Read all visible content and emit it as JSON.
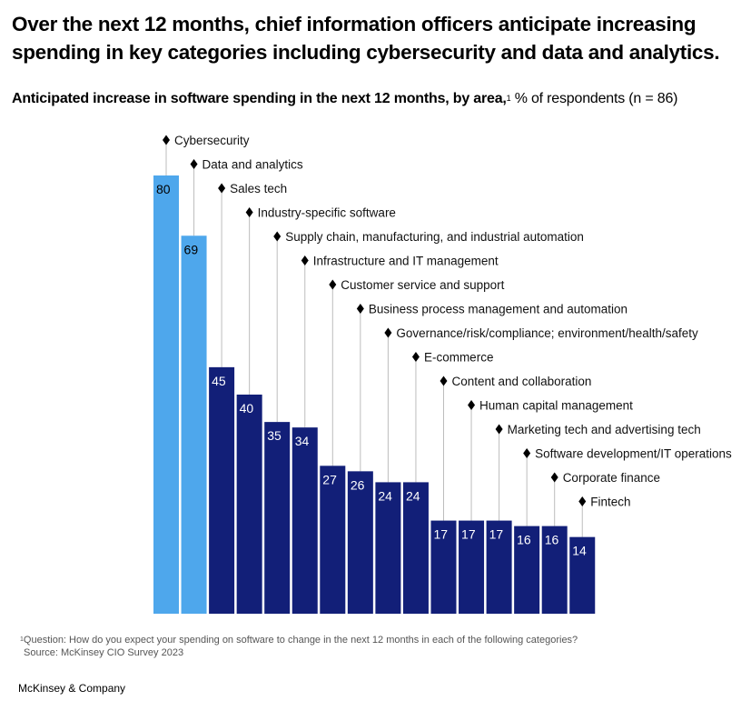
{
  "title": "Over the next 12 months, chief information officers anticipate increasing spending in key categories including cybersecurity and data and analytics.",
  "subtitle": {
    "bold": "Anticipated increase in software spending in the next 12 months, by area,",
    "footnote_marker": "1",
    "regular": " % of respondents (n = 86)"
  },
  "colors": {
    "highlight": "#4ea7ec",
    "primary": "#121f78",
    "connector": "#bdbdbd",
    "label_on_highlight": "#000000",
    "label_on_primary": "#ffffff"
  },
  "chart_data": {
    "type": "bar",
    "title": "Anticipated increase in software spending in the next 12 months, by area",
    "ylabel": "% of respondents (n = 86)",
    "xlabel": "",
    "ylim": [
      0,
      80
    ],
    "grid": false,
    "legend": "none",
    "label_style": "diamond-leader labels above bars",
    "categories": [
      "Cybersecurity",
      "Data and analytics",
      "Sales tech",
      "Industry-specific software",
      "Supply chain, manufacturing, and industrial automation",
      "Infrastructure and IT management",
      "Customer service and support",
      "Business process management and automation",
      "Governance/risk/compliance; environment/health/safety",
      "E-commerce",
      "Content and collaboration",
      "Human capital management",
      "Marketing tech and advertising tech",
      "Software development/IT operations",
      "Corporate finance",
      "Fintech"
    ],
    "values": [
      80,
      69,
      45,
      40,
      35,
      34,
      27,
      26,
      24,
      24,
      17,
      17,
      17,
      16,
      16,
      14
    ],
    "highlighted": [
      true,
      true,
      false,
      false,
      false,
      false,
      false,
      false,
      false,
      false,
      false,
      false,
      false,
      false,
      false,
      false
    ]
  },
  "footnote": {
    "marker": "1",
    "question": "Question: How do you expect your spending on software to change in the next 12 months in each of the following categories?",
    "source": "Source: McKinsey CIO Survey 2023"
  },
  "brand": "McKinsey & Company"
}
